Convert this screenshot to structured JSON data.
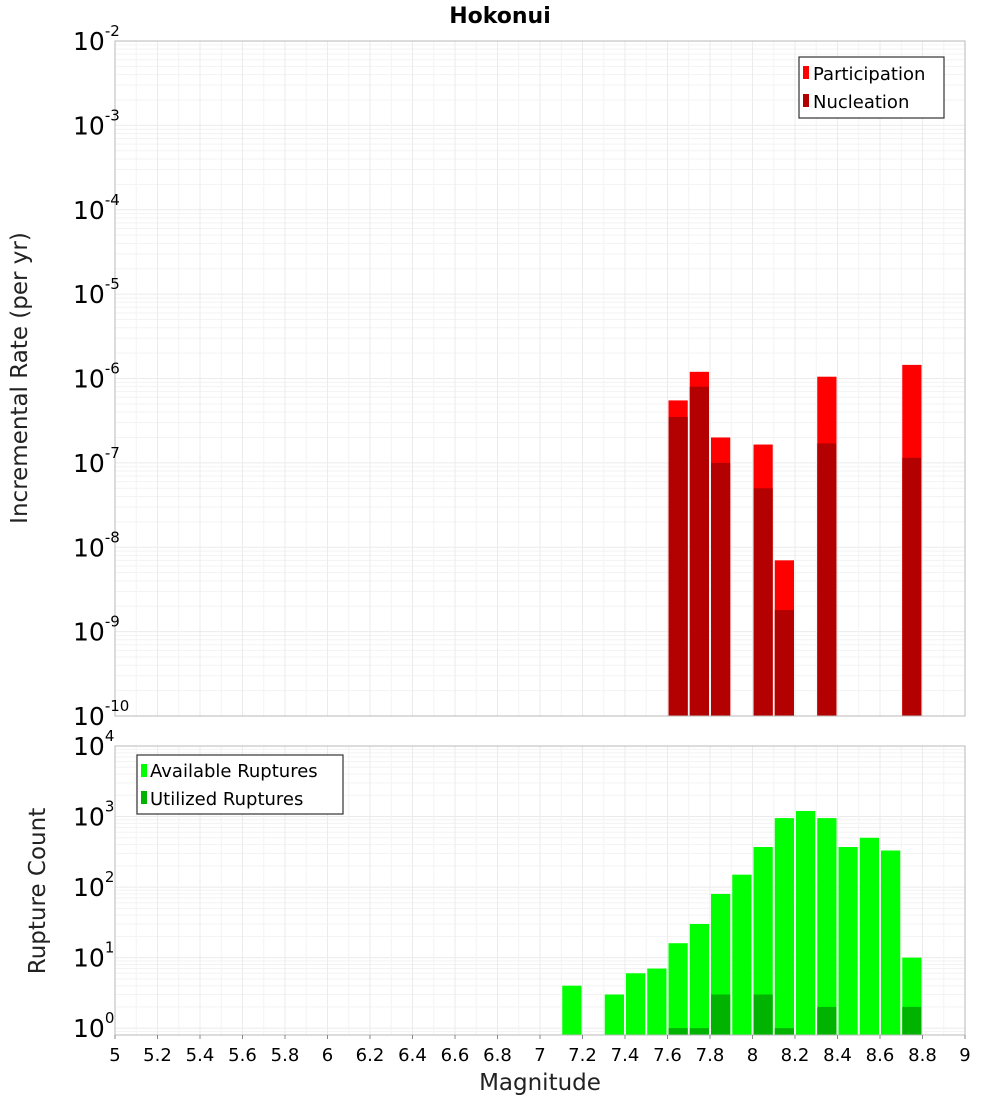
{
  "chart_data": [
    {
      "type": "bar",
      "title": "Hokonui",
      "xlabel": "",
      "ylabel": "Incremental Rate (per yr)",
      "yscale": "log",
      "xlim": [
        5,
        9
      ],
      "ylim": [
        1e-10,
        0.01
      ],
      "y_decade_exponents": [
        "-10",
        "-9",
        "-8",
        "-7",
        "-6",
        "-5",
        "-4",
        "-3",
        "-2"
      ],
      "legend": {
        "position": "top-right",
        "entries": [
          "Participation",
          "Nucleation"
        ]
      },
      "series": [
        {
          "name": "Participation",
          "color": "#ff0000",
          "points": [
            {
              "x": 7.65,
              "y": 5.5e-07
            },
            {
              "x": 7.75,
              "y": 1.2e-06
            },
            {
              "x": 7.85,
              "y": 2e-07
            },
            {
              "x": 8.05,
              "y": 1.65e-07
            },
            {
              "x": 8.15,
              "y": 7e-09
            },
            {
              "x": 8.35,
              "y": 1.05e-06
            },
            {
              "x": 8.75,
              "y": 1.45e-06
            }
          ]
        },
        {
          "name": "Nucleation",
          "color": "#b30000",
          "points": [
            {
              "x": 7.65,
              "y": 3.5e-07
            },
            {
              "x": 7.75,
              "y": 8e-07
            },
            {
              "x": 7.85,
              "y": 1e-07
            },
            {
              "x": 8.05,
              "y": 5e-08
            },
            {
              "x": 8.15,
              "y": 1.8e-09
            },
            {
              "x": 8.35,
              "y": 1.7e-07
            },
            {
              "x": 8.75,
              "y": 1.15e-07
            }
          ]
        }
      ]
    },
    {
      "type": "bar",
      "title": "",
      "xlabel": "Magnitude",
      "ylabel": "Rupture Count",
      "yscale": "log",
      "xlim": [
        5,
        9
      ],
      "ylim": [
        0.8,
        10000
      ],
      "y_decade_exponents": [
        "0",
        "1",
        "2",
        "3",
        "4"
      ],
      "x_ticks": [
        "5",
        "5.2",
        "5.4",
        "5.6",
        "5.8",
        "6",
        "6.2",
        "6.4",
        "6.6",
        "6.8",
        "7",
        "7.2",
        "7.4",
        "7.6",
        "7.8",
        "8",
        "8.2",
        "8.4",
        "8.6",
        "8.8",
        "9"
      ],
      "legend": {
        "position": "top-left",
        "entries": [
          "Available Ruptures",
          "Utilized Ruptures"
        ]
      },
      "series": [
        {
          "name": "Available Ruptures",
          "color": "#00ff00",
          "points": [
            {
              "x": 7.15,
              "y": 4
            },
            {
              "x": 7.35,
              "y": 3
            },
            {
              "x": 7.45,
              "y": 6
            },
            {
              "x": 7.55,
              "y": 7
            },
            {
              "x": 7.65,
              "y": 16
            },
            {
              "x": 7.75,
              "y": 30
            },
            {
              "x": 7.85,
              "y": 80
            },
            {
              "x": 7.95,
              "y": 150
            },
            {
              "x": 8.05,
              "y": 370
            },
            {
              "x": 8.15,
              "y": 950
            },
            {
              "x": 8.25,
              "y": 1200
            },
            {
              "x": 8.35,
              "y": 950
            },
            {
              "x": 8.45,
              "y": 370
            },
            {
              "x": 8.55,
              "y": 500
            },
            {
              "x": 8.65,
              "y": 330
            },
            {
              "x": 8.75,
              "y": 10
            }
          ]
        },
        {
          "name": "Utilized Ruptures",
          "color": "#00b300",
          "points": [
            {
              "x": 7.65,
              "y": 1
            },
            {
              "x": 7.75,
              "y": 1
            },
            {
              "x": 7.85,
              "y": 3
            },
            {
              "x": 8.05,
              "y": 3
            },
            {
              "x": 8.15,
              "y": 1
            },
            {
              "x": 8.35,
              "y": 2
            },
            {
              "x": 8.75,
              "y": 2
            }
          ]
        }
      ]
    }
  ]
}
